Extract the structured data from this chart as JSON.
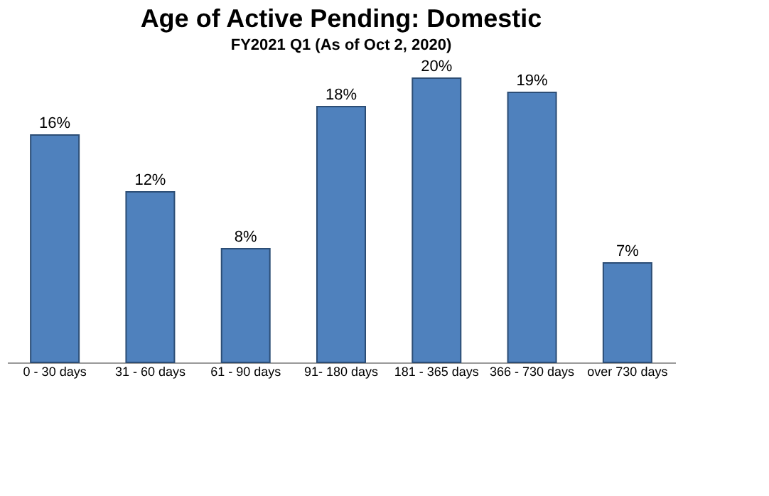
{
  "chart_data": {
    "type": "bar",
    "title": "Age of Active Pending: Domestic",
    "subtitle": "FY2021  Q1 (As of Oct 2, 2020)",
    "categories": [
      "0 - 30 days",
      "31 - 60 days",
      "61 - 90 days",
      "91- 180 days",
      "181 - 365 days",
      "366 - 730 days",
      "over 730 days"
    ],
    "values": [
      16,
      12,
      8,
      18,
      20,
      19,
      7
    ],
    "value_labels": [
      "16%",
      "12%",
      "8%",
      "18%",
      "20%",
      "19%",
      "7%"
    ],
    "color": "#4f81bd",
    "grid": false
  }
}
